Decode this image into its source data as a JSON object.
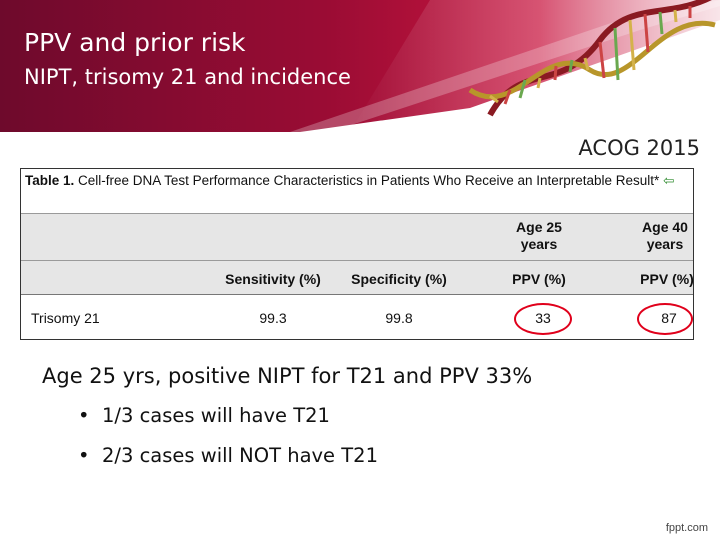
{
  "header": {
    "title": "PPV and prior risk",
    "subtitle": "NIPT, trisomy 21 and incidence"
  },
  "source": "ACOG 2015",
  "table": {
    "caption_label": "Table 1.",
    "caption_text": "Cell-free DNA Test Performance Characteristics in Patients Who Receive an Interpretable Result*",
    "caption_arrow": "⇦",
    "age_headers": [
      "Age 25 years",
      "Age 40 years"
    ],
    "columns": [
      "Sensitivity (%)",
      "Specificity (%)",
      "PPV (%)",
      "PPV (%)"
    ],
    "rows": [
      {
        "label": "Trisomy 21",
        "values": [
          "99.3",
          "99.8",
          "33",
          "87"
        ]
      }
    ],
    "highlight_color": "#e0001b"
  },
  "body": {
    "statement": "Age 25 yrs, positive NIPT for T21 and PPV 33%",
    "bullets": [
      "1/3 cases will have T21",
      "2/3 cases will NOT have T21"
    ]
  },
  "footer": "fppt.com",
  "colors": {
    "banner_dark": "#7a0a30",
    "banner_bright": "#c4103c"
  }
}
